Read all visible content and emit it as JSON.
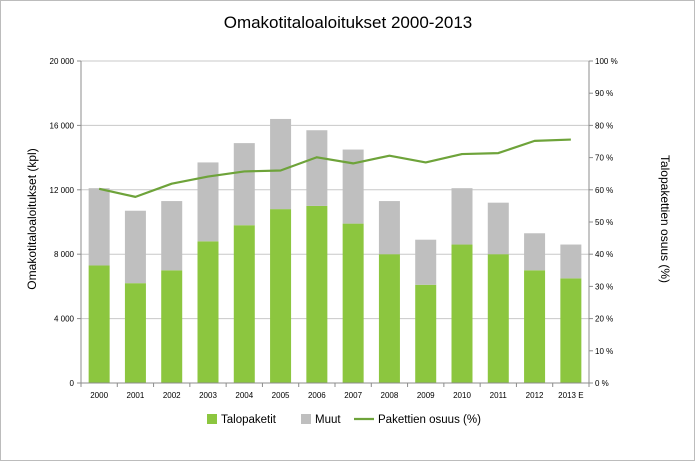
{
  "chart_data": {
    "type": "bar",
    "title": "Omakotitaloaloitukset 2000-2013",
    "categories": [
      "2000",
      "2001",
      "2002",
      "2003",
      "2004",
      "2005",
      "2006",
      "2007",
      "2008",
      "2009",
      "2010",
      "2011",
      "2012",
      "2013 E"
    ],
    "ylabel": "Omakotitaloaloitukset (kpl)",
    "y2label": "Talopakettien osuus (%)",
    "ylim": [
      0,
      20000
    ],
    "y2lim": [
      0,
      100
    ],
    "y_ticks": [
      "0",
      "4 000",
      "8 000",
      "12 000",
      "16 000",
      "20 000"
    ],
    "y_tick_values": [
      0,
      4000,
      8000,
      12000,
      16000,
      20000
    ],
    "y2_ticks": [
      "0 %",
      "10 %",
      "20 %",
      "30 %",
      "40 %",
      "50 %",
      "60 %",
      "70 %",
      "80 %",
      "90 %",
      "100 %"
    ],
    "y2_tick_values": [
      0,
      10,
      20,
      30,
      40,
      50,
      60,
      70,
      80,
      90,
      100
    ],
    "stacked": true,
    "series": [
      {
        "name": "Talopaketit",
        "kind": "bar",
        "axis": "left",
        "color": "#8cc63f",
        "values": [
          7300,
          6200,
          7000,
          8800,
          9800,
          10800,
          11000,
          9900,
          8000,
          6100,
          8600,
          8000,
          7000,
          6500
        ]
      },
      {
        "name": "Muut",
        "kind": "bar",
        "axis": "left",
        "color": "#bfbfbf",
        "values": [
          4800,
          4500,
          4300,
          4900,
          5100,
          5600,
          4700,
          4600,
          3300,
          2800,
          3500,
          3200,
          2300,
          2100
        ]
      },
      {
        "name": "Pakettien osuus (%)",
        "kind": "line",
        "axis": "right",
        "color": "#6ea33a",
        "values": [
          60.3,
          57.8,
          61.9,
          64.1,
          65.7,
          66.0,
          70.1,
          68.2,
          70.6,
          68.5,
          71.1,
          71.4,
          75.2,
          75.6
        ]
      }
    ],
    "grid": true,
    "legend": "bottom"
  }
}
